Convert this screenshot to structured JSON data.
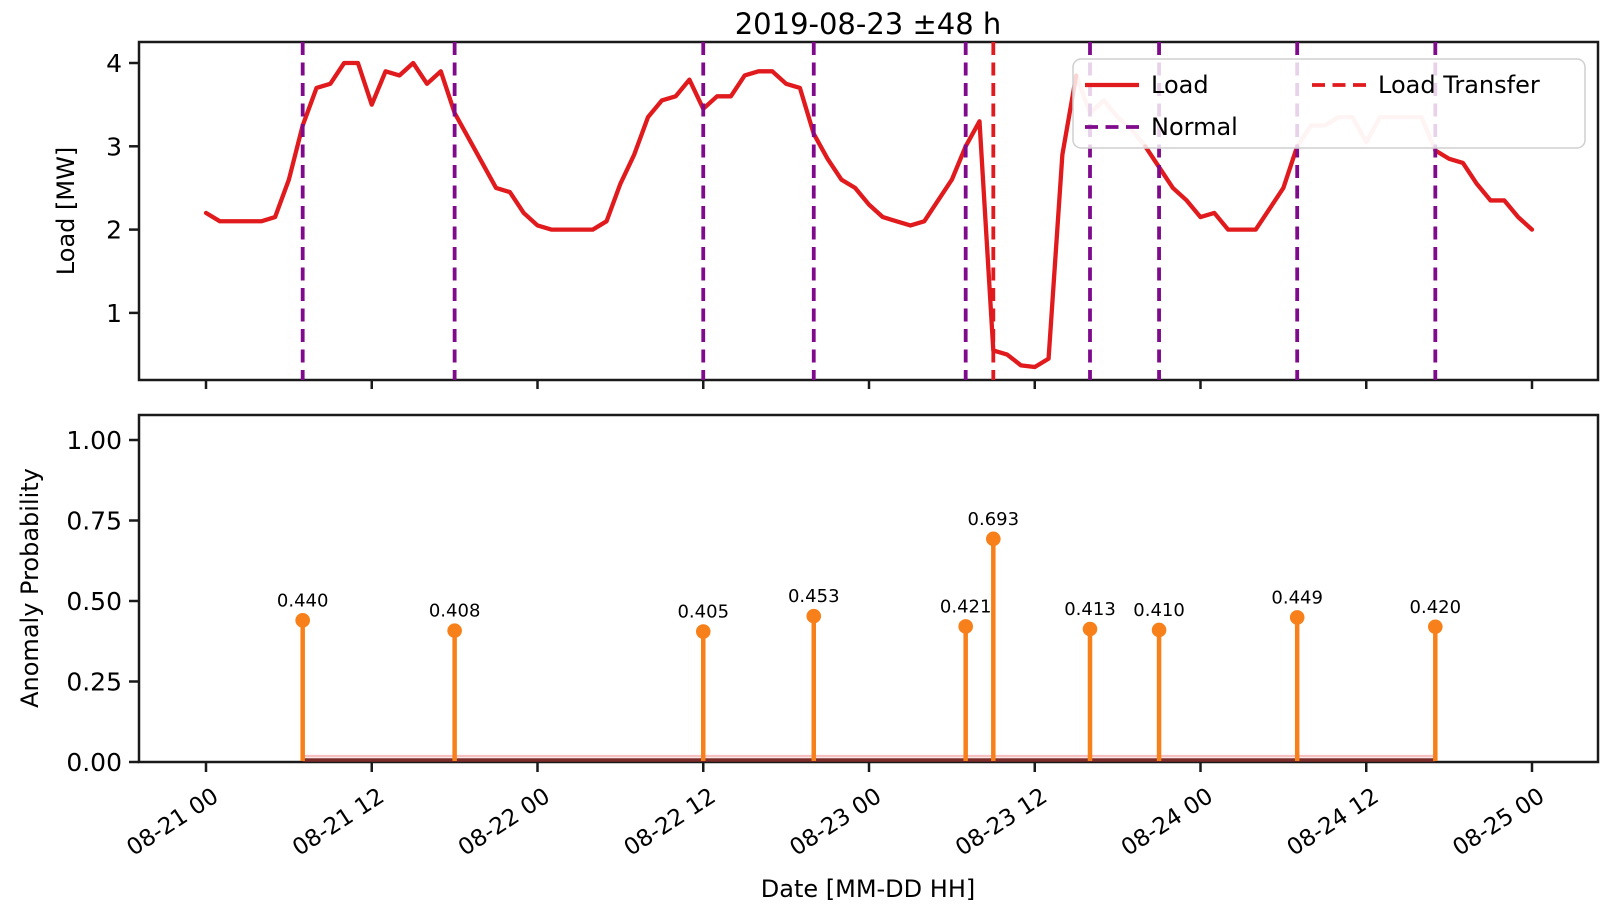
{
  "title": "2019-08-23 ±48 h",
  "colors": {
    "load": "#e01a1d",
    "load_transfer": "#e01a1d",
    "normal": "#7f0a8c",
    "anomaly_stem": "#f7801a",
    "faded_load": "#f6bfc0",
    "stem_baseline": "#7e2c2a",
    "axis": "#1a1a1a",
    "text": "#000000",
    "legend_border": "#cfcfcf"
  },
  "legend": {
    "items": [
      {
        "label": "Load",
        "line_style": "solid",
        "color_key": "load"
      },
      {
        "label": "Normal",
        "line_style": "dashed",
        "color_key": "normal"
      },
      {
        "label": "Load Transfer",
        "line_style": "dashed",
        "color_key": "load_transfer"
      }
    ]
  },
  "chart_data": [
    {
      "type": "line",
      "title": "2019-08-23 ±48 h",
      "ylabel": "Load [MW]",
      "yticks": [
        4,
        3,
        2,
        1
      ],
      "ylim": [
        0.2,
        4.25
      ],
      "x_unit": "hours from 08-21 00",
      "x_start_hour": 0,
      "x_step_hours": 1,
      "xlim_hours": [
        -4.85,
        100.75
      ],
      "series": [
        {
          "name": "Load",
          "values": [
            2.2,
            2.1,
            2.1,
            2.1,
            2.1,
            2.15,
            2.6,
            3.25,
            3.7,
            3.75,
            4.0,
            4.0,
            3.5,
            3.9,
            3.85,
            4.0,
            3.75,
            3.9,
            3.4,
            3.1,
            2.8,
            2.5,
            2.45,
            2.2,
            2.05,
            2.0,
            2.0,
            2.0,
            2.0,
            2.1,
            2.55,
            2.9,
            3.35,
            3.55,
            3.6,
            3.8,
            3.45,
            3.6,
            3.6,
            3.85,
            3.9,
            3.9,
            3.75,
            3.7,
            3.15,
            2.85,
            2.6,
            2.5,
            2.3,
            2.15,
            2.1,
            2.05,
            2.1,
            2.35,
            2.6,
            3.0,
            3.3,
            0.55,
            0.5,
            0.37,
            0.35,
            0.45,
            2.9,
            3.85,
            3.4,
            3.55,
            3.35,
            3.2,
            3.0,
            2.75,
            2.5,
            2.35,
            2.15,
            2.2,
            2.0,
            2.0,
            2.0,
            2.25,
            2.5,
            3.0,
            3.25,
            3.25,
            3.35,
            3.35,
            3.05,
            3.35,
            3.35,
            3.35,
            3.35,
            2.95,
            2.85,
            2.8,
            2.55,
            2.35,
            2.35,
            2.15,
            2.0
          ]
        }
      ],
      "faded_hour_ranges": [
        [
          63,
          68
        ],
        [
          79,
          89
        ]
      ],
      "normal_event_hours": [
        7,
        18,
        36,
        44,
        55,
        64,
        69,
        79,
        89
      ],
      "load_transfer_event_hours": [
        57
      ]
    },
    {
      "type": "stem",
      "ylabel": "Anomaly Probability",
      "xlabel": "Date [MM-DD HH]",
      "ylim": [
        0,
        1.08
      ],
      "yticks": [
        {
          "value": 0.0,
          "label": "0.00"
        },
        {
          "value": 0.25,
          "label": "0.25"
        },
        {
          "value": 0.5,
          "label": "0.50"
        },
        {
          "value": 0.75,
          "label": "0.75"
        },
        {
          "value": 1.0,
          "label": "1.00"
        }
      ],
      "xticks": [
        {
          "hour": 0,
          "label": "08-21 00"
        },
        {
          "hour": 12,
          "label": "08-21 12"
        },
        {
          "hour": 24,
          "label": "08-22 00"
        },
        {
          "hour": 36,
          "label": "08-22 12"
        },
        {
          "hour": 48,
          "label": "08-23 00"
        },
        {
          "hour": 60,
          "label": "08-23 12"
        },
        {
          "hour": 72,
          "label": "08-24 00"
        },
        {
          "hour": 84,
          "label": "08-24 12"
        },
        {
          "hour": 96,
          "label": "08-25 00"
        }
      ],
      "stems": [
        {
          "time": "08-21 07",
          "hour": 7,
          "value": 0.44,
          "label": "0.440",
          "kind": "normal"
        },
        {
          "time": "08-21 18",
          "hour": 18,
          "value": 0.408,
          "label": "0.408",
          "kind": "normal"
        },
        {
          "time": "08-22 12",
          "hour": 36,
          "value": 0.405,
          "label": "0.405",
          "kind": "normal"
        },
        {
          "time": "08-22 20",
          "hour": 44,
          "value": 0.453,
          "label": "0.453",
          "kind": "normal"
        },
        {
          "time": "08-23 07",
          "hour": 55,
          "value": 0.421,
          "label": "0.421",
          "kind": "normal"
        },
        {
          "time": "08-23 09",
          "hour": 57,
          "value": 0.693,
          "label": "0.693",
          "kind": "load_transfer"
        },
        {
          "time": "08-23 16",
          "hour": 64,
          "value": 0.413,
          "label": "0.413",
          "kind": "normal"
        },
        {
          "time": "08-23 21",
          "hour": 69,
          "value": 0.41,
          "label": "0.410",
          "kind": "normal"
        },
        {
          "time": "08-24 07",
          "hour": 79,
          "value": 0.449,
          "label": "0.449",
          "kind": "normal"
        },
        {
          "time": "08-24 17",
          "hour": 89,
          "value": 0.42,
          "label": "0.420",
          "kind": "normal"
        }
      ],
      "baseline": {
        "value": 0.0,
        "from_hour": 7,
        "to_hour": 89
      },
      "near_zero_line": {
        "value": 0.015,
        "from_hour": 7,
        "to_hour": 89
      }
    }
  ]
}
